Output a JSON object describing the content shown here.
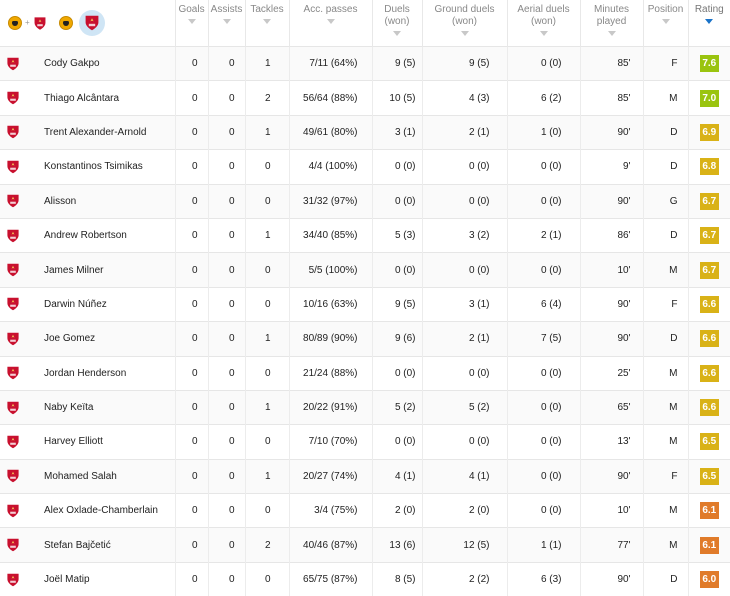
{
  "header": {
    "columns": [
      {
        "key": "goals",
        "label": [
          "Goals"
        ]
      },
      {
        "key": "assists",
        "label": [
          "Assists"
        ]
      },
      {
        "key": "tackles",
        "label": [
          "Tackles"
        ]
      },
      {
        "key": "acc",
        "label": [
          "Acc. passes"
        ]
      },
      {
        "key": "duels",
        "label": [
          "Duels",
          "(won)"
        ]
      },
      {
        "key": "ground",
        "label": [
          "Ground duels",
          "(won)"
        ]
      },
      {
        "key": "aerial",
        "label": [
          "Aerial duels",
          "(won)"
        ]
      },
      {
        "key": "min",
        "label": [
          "Minutes",
          "played"
        ]
      },
      {
        "key": "pos",
        "label": [
          "Position"
        ]
      },
      {
        "key": "rating",
        "label": [
          "Rating"
        ]
      }
    ],
    "sorted_column": "rating",
    "team_icons": [
      "wolves-crest-icon",
      "liverpool-crest-icon",
      "wolves-crest-icon",
      "liverpool-crest-icon"
    ]
  },
  "colors": {
    "yellowgreen": "#9ac40f",
    "gold": "#d9b217",
    "orange": "#e07b2a",
    "liverpool_red": "#c8102e"
  },
  "players": [
    {
      "name": "Cody Gakpo",
      "goals": "0",
      "assists": "0",
      "tackles": "1",
      "acc": "7/11 (64%)",
      "duels": "9 (5)",
      "ground": "9 (5)",
      "aerial": "0 (0)",
      "min": "85'",
      "pos": "F",
      "rating": "7.6",
      "rating_color": "yellowgreen"
    },
    {
      "name": "Thiago Alcântara",
      "goals": "0",
      "assists": "0",
      "tackles": "2",
      "acc": "56/64 (88%)",
      "duels": "10 (5)",
      "ground": "4 (3)",
      "aerial": "6 (2)",
      "min": "85'",
      "pos": "M",
      "rating": "7.0",
      "rating_color": "yellowgreen"
    },
    {
      "name": "Trent Alexander-Arnold",
      "goals": "0",
      "assists": "0",
      "tackles": "1",
      "acc": "49/61 (80%)",
      "duels": "3 (1)",
      "ground": "2 (1)",
      "aerial": "1 (0)",
      "min": "90'",
      "pos": "D",
      "rating": "6.9",
      "rating_color": "gold"
    },
    {
      "name": "Konstantinos Tsimikas",
      "goals": "0",
      "assists": "0",
      "tackles": "0",
      "acc": "4/4 (100%)",
      "duels": "0 (0)",
      "ground": "0 (0)",
      "aerial": "0 (0)",
      "min": "9'",
      "pos": "D",
      "rating": "6.8",
      "rating_color": "gold"
    },
    {
      "name": "Alisson",
      "goals": "0",
      "assists": "0",
      "tackles": "0",
      "acc": "31/32 (97%)",
      "duels": "0 (0)",
      "ground": "0 (0)",
      "aerial": "0 (0)",
      "min": "90'",
      "pos": "G",
      "rating": "6.7",
      "rating_color": "gold"
    },
    {
      "name": "Andrew Robertson",
      "goals": "0",
      "assists": "0",
      "tackles": "1",
      "acc": "34/40 (85%)",
      "duels": "5 (3)",
      "ground": "3 (2)",
      "aerial": "2 (1)",
      "min": "86'",
      "pos": "D",
      "rating": "6.7",
      "rating_color": "gold"
    },
    {
      "name": "James Milner",
      "goals": "0",
      "assists": "0",
      "tackles": "0",
      "acc": "5/5 (100%)",
      "duels": "0 (0)",
      "ground": "0 (0)",
      "aerial": "0 (0)",
      "min": "10'",
      "pos": "M",
      "rating": "6.7",
      "rating_color": "gold"
    },
    {
      "name": "Darwin Núñez",
      "goals": "0",
      "assists": "0",
      "tackles": "0",
      "acc": "10/16 (63%)",
      "duels": "9 (5)",
      "ground": "3 (1)",
      "aerial": "6 (4)",
      "min": "90'",
      "pos": "F",
      "rating": "6.6",
      "rating_color": "gold"
    },
    {
      "name": "Joe Gomez",
      "goals": "0",
      "assists": "0",
      "tackles": "1",
      "acc": "80/89 (90%)",
      "duels": "9 (6)",
      "ground": "2 (1)",
      "aerial": "7 (5)",
      "min": "90'",
      "pos": "D",
      "rating": "6.6",
      "rating_color": "gold"
    },
    {
      "name": "Jordan Henderson",
      "goals": "0",
      "assists": "0",
      "tackles": "0",
      "acc": "21/24 (88%)",
      "duels": "0 (0)",
      "ground": "0 (0)",
      "aerial": "0 (0)",
      "min": "25'",
      "pos": "M",
      "rating": "6.6",
      "rating_color": "gold"
    },
    {
      "name": "Naby Keïta",
      "goals": "0",
      "assists": "0",
      "tackles": "1",
      "acc": "20/22 (91%)",
      "duels": "5 (2)",
      "ground": "5 (2)",
      "aerial": "0 (0)",
      "min": "65'",
      "pos": "M",
      "rating": "6.6",
      "rating_color": "gold"
    },
    {
      "name": "Harvey Elliott",
      "goals": "0",
      "assists": "0",
      "tackles": "0",
      "acc": "7/10 (70%)",
      "duels": "0 (0)",
      "ground": "0 (0)",
      "aerial": "0 (0)",
      "min": "13'",
      "pos": "M",
      "rating": "6.5",
      "rating_color": "gold"
    },
    {
      "name": "Mohamed Salah",
      "goals": "0",
      "assists": "0",
      "tackles": "1",
      "acc": "20/27 (74%)",
      "duels": "4 (1)",
      "ground": "4 (1)",
      "aerial": "0 (0)",
      "min": "90'",
      "pos": "F",
      "rating": "6.5",
      "rating_color": "gold"
    },
    {
      "name": "Alex Oxlade-Chamberlain",
      "goals": "0",
      "assists": "0",
      "tackles": "0",
      "acc": "3/4 (75%)",
      "duels": "2 (0)",
      "ground": "2 (0)",
      "aerial": "0 (0)",
      "min": "10'",
      "pos": "M",
      "rating": "6.1",
      "rating_color": "orange"
    },
    {
      "name": "Stefan Bajčetić",
      "goals": "0",
      "assists": "0",
      "tackles": "2",
      "acc": "40/46 (87%)",
      "duels": "13 (6)",
      "ground": "12 (5)",
      "aerial": "1 (1)",
      "min": "77'",
      "pos": "M",
      "rating": "6.1",
      "rating_color": "orange"
    },
    {
      "name": "Joël Matip",
      "goals": "0",
      "assists": "0",
      "tackles": "0",
      "acc": "65/75 (87%)",
      "duels": "8 (5)",
      "ground": "2 (2)",
      "aerial": "6 (3)",
      "min": "90'",
      "pos": "D",
      "rating": "6.0",
      "rating_color": "orange"
    }
  ]
}
